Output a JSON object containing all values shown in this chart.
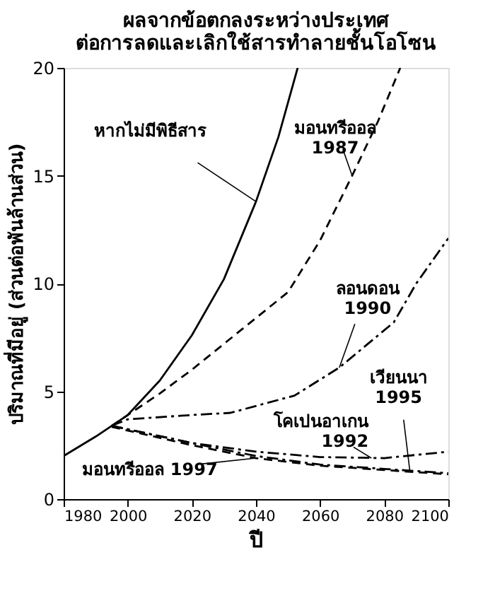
{
  "chart_data": {
    "type": "line",
    "title": [
      "ผลจากข้อตกลงระหว่างประเทศ",
      "ต่อการลดและเลิกใช้สารทำลายชั้นโอโซน"
    ],
    "xlabel": "ปี",
    "ylabel": "ปริมาณที่มีอยู่ (ส่วนต่อพันล้านส่วน)",
    "xlim": [
      1980,
      2100
    ],
    "ylim": [
      0,
      20
    ],
    "xticks": [
      1980,
      2000,
      2020,
      2040,
      2060,
      2080,
      2100
    ],
    "yticks": [
      0,
      5,
      10,
      15,
      20
    ],
    "grid": false,
    "marker": "none",
    "series": [
      {
        "color": "#000000",
        "line_style": "solid",
        "x": [
          1980,
          1990,
          1995,
          2000,
          2010,
          2020,
          2030,
          2040,
          2047,
          2053
        ],
        "values": [
          2.0,
          2.9,
          3.4,
          3.9,
          5.5,
          7.6,
          10.2,
          13.8,
          16.8,
          20
        ]
      },
      {
        "color": "#000000",
        "line_style": "dashed",
        "x": [
          1995,
          2000,
          2010,
          2020,
          2030,
          2040,
          2050,
          2060,
          2070,
          2078,
          2085
        ],
        "values": [
          3.4,
          3.9,
          4.9,
          6.0,
          7.2,
          8.4,
          9.6,
          12.0,
          15.0,
          17.5,
          20
        ]
      },
      {
        "color": "#000000",
        "line_style": "dashdot",
        "x": [
          1995,
          2000,
          2020,
          2032,
          2052,
          2066,
          2083,
          2090,
          2100
        ],
        "values": [
          3.4,
          3.7,
          3.9,
          4.0,
          4.8,
          6.1,
          8.2,
          10.0,
          12.1
        ]
      },
      {
        "color": "#000000",
        "line_style": "dashdot",
        "x": [
          1995,
          2020,
          2040,
          2060,
          2080,
          2100
        ],
        "values": [
          3.4,
          2.6,
          2.2,
          1.95,
          1.9,
          2.2
        ]
      },
      {
        "color": "#000000",
        "line_style": "dashdot",
        "x": [
          1995,
          2020,
          2040,
          2060,
          2080,
          2100
        ],
        "values": [
          3.4,
          2.6,
          2.0,
          1.6,
          1.4,
          1.2
        ]
      },
      {
        "color": "#000000",
        "line_style": "dashed",
        "x": [
          1995,
          2020,
          2040,
          2060,
          2080,
          2100
        ],
        "values": [
          3.35,
          2.5,
          1.9,
          1.55,
          1.35,
          1.15
        ]
      }
    ],
    "annotations": [
      {
        "text": "หากไม่มีพิธีสาร",
        "x": 2040,
        "y": 13.8
      },
      {
        "text": "มอนทรีออล\n1987",
        "x": 2070,
        "y": 15.0
      },
      {
        "text": "ลอนดอน\n1990",
        "x": 2066,
        "y": 6.1
      },
      {
        "text": "เวียนนา\n1995",
        "x": 2088,
        "y": 1.3
      },
      {
        "text": "โคเปนอาเกน\n1992",
        "x": 2076,
        "y": 1.9
      },
      {
        "text": "มอนทรีออล 1997",
        "x": 2040,
        "y": 1.9
      }
    ]
  }
}
